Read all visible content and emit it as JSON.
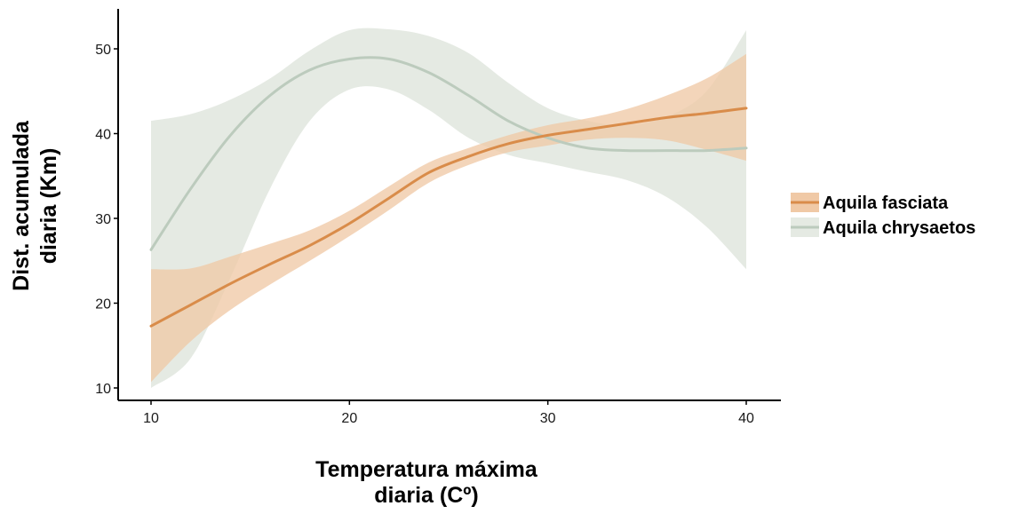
{
  "chart_data": {
    "type": "line",
    "title": "",
    "xlabel_lines": [
      "Temperatura máxima",
      "diaria (Cº)"
    ],
    "ylabel_lines": [
      "Dist. acumulada",
      "diaria (Km)"
    ],
    "xlim": [
      9,
      41
    ],
    "ylim": [
      9,
      54
    ],
    "x_ticks": [
      10,
      20,
      30,
      40
    ],
    "y_ticks": [
      10,
      20,
      30,
      40,
      50
    ],
    "grid": false,
    "legend_position": "right",
    "series": [
      {
        "name": "Aquila fasciata",
        "color": "#d98c4a",
        "band_color": "#f0c9a6",
        "x": [
          10,
          12,
          14,
          16,
          18,
          20,
          22,
          24,
          26,
          28,
          30,
          32,
          34,
          36,
          38,
          40
        ],
        "y": [
          17.3,
          19.8,
          22.3,
          24.6,
          26.8,
          29.4,
          32.4,
          35.4,
          37.3,
          38.8,
          39.8,
          40.5,
          41.2,
          41.9,
          42.4,
          43.0
        ],
        "lower": [
          10.7,
          15.5,
          19.2,
          22.2,
          25.0,
          27.9,
          31.0,
          34.2,
          36.3,
          37.8,
          38.6,
          39.3,
          39.5,
          39.2,
          38.1,
          36.8
        ],
        "upper": [
          24.0,
          24.1,
          25.5,
          27.0,
          28.6,
          30.9,
          33.8,
          36.6,
          38.3,
          39.8,
          41.0,
          41.8,
          42.9,
          44.5,
          46.5,
          49.4
        ]
      },
      {
        "name": "Aquila chrysaetos",
        "color": "#bccbbd",
        "band_color": "#e5eae3",
        "x": [
          10,
          12,
          14,
          16,
          18,
          20,
          22,
          24,
          26,
          28,
          30,
          32,
          34,
          36,
          38,
          40
        ],
        "y": [
          26.3,
          33.5,
          39.8,
          44.5,
          47.5,
          48.8,
          48.8,
          47.2,
          44.5,
          41.5,
          39.5,
          38.3,
          38.0,
          38.0,
          38.0,
          38.3
        ],
        "lower": [
          10.0,
          13.5,
          23.0,
          33.5,
          41.5,
          45.2,
          45.2,
          42.8,
          39.5,
          37.5,
          36.5,
          35.5,
          34.5,
          32.5,
          29.0,
          24.0
        ],
        "upper": [
          41.5,
          42.3,
          44.0,
          46.5,
          49.8,
          52.2,
          52.3,
          51.5,
          49.5,
          46.0,
          43.0,
          41.5,
          41.0,
          42.0,
          45.0,
          52.2
        ]
      }
    ]
  }
}
